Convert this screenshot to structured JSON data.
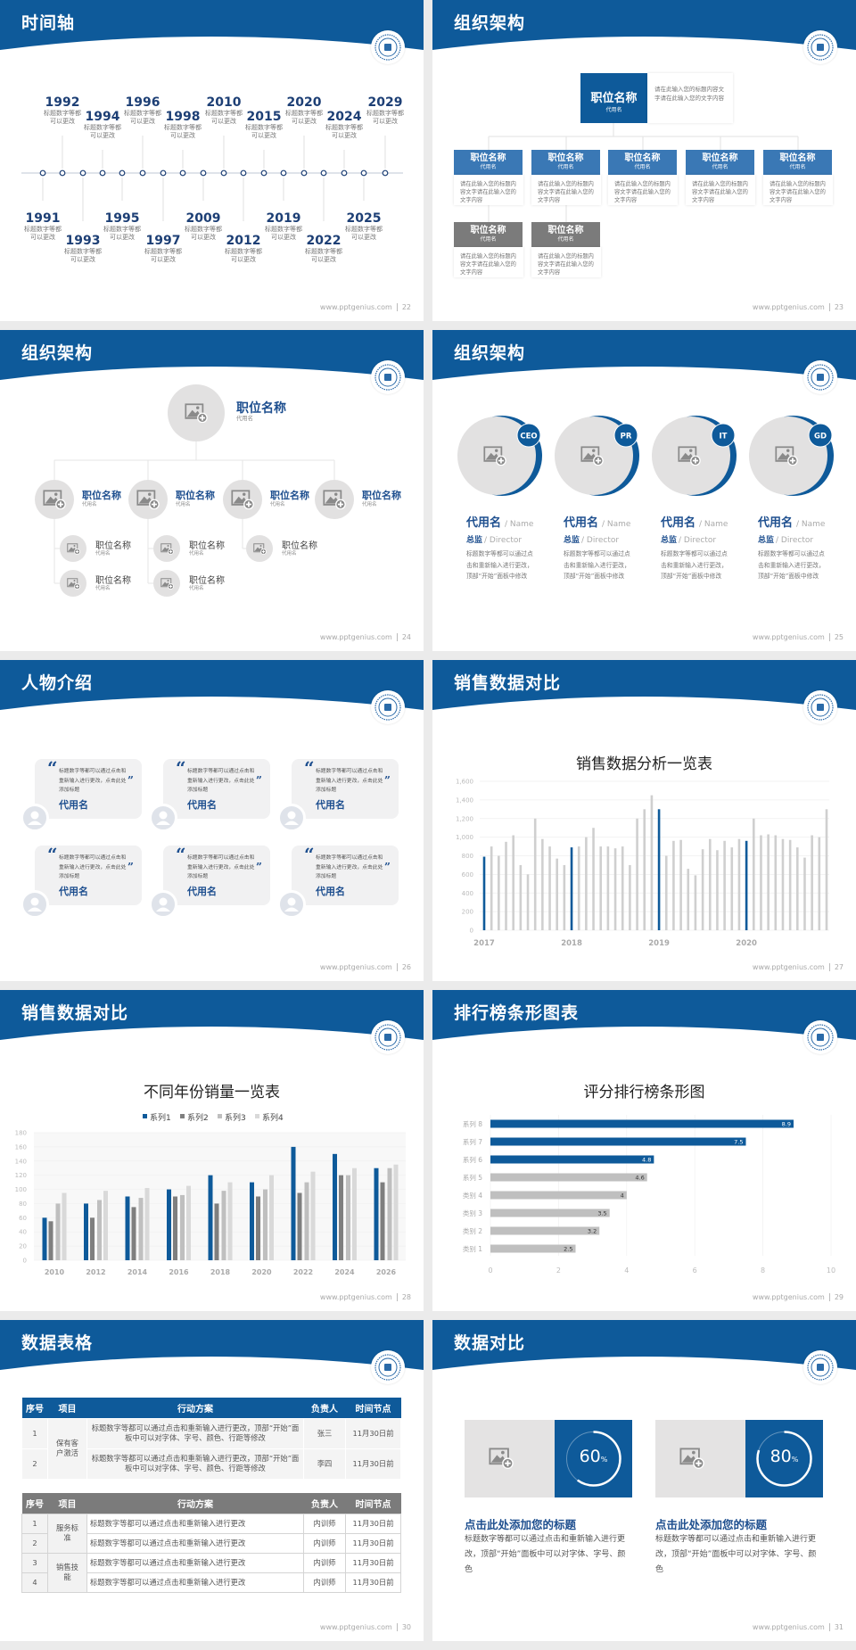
{
  "site": "www.pptgenius.com",
  "colors": {
    "primary": "#0e5a9a",
    "secondary_box": "#3a78b5",
    "gray_box": "#7b7b7b",
    "bar_gray": "#cfcfcf",
    "dark_year": "#1d3f75"
  },
  "slides": {
    "timeline": {
      "title": "时间轴",
      "page": "22",
      "events": [
        {
          "year": "1991",
          "desc": "标题数字等都可以更改"
        },
        {
          "year": "1992",
          "desc": "标题数字等都可以更改"
        },
        {
          "year": "1993",
          "desc": "标题数字等都可以更改"
        },
        {
          "year": "1994",
          "desc": "标题数字等都可以更改"
        },
        {
          "year": "1995",
          "desc": "标题数字等都可以更改"
        },
        {
          "year": "1996",
          "desc": "标题数字等都可以更改"
        },
        {
          "year": "1997",
          "desc": "标题数字等都可以更改"
        },
        {
          "year": "1998",
          "desc": "标题数字等都可以更改"
        },
        {
          "year": "2009",
          "desc": "标题数字等都可以更改"
        },
        {
          "year": "2010",
          "desc": "标题数字等都可以更改"
        },
        {
          "year": "2012",
          "desc": "标题数字等都可以更改"
        },
        {
          "year": "2015",
          "desc": "标题数字等都可以更改"
        },
        {
          "year": "2019",
          "desc": "标题数字等都可以更改"
        },
        {
          "year": "2020",
          "desc": "标题数字等都可以更改"
        },
        {
          "year": "2022",
          "desc": "标题数字等都可以更改"
        },
        {
          "year": "2024",
          "desc": "标题数字等都可以更改"
        },
        {
          "year": "2025",
          "desc": "标题数字等都可以更改"
        },
        {
          "year": "2029",
          "desc": "标题数字等都可以更改"
        }
      ]
    },
    "org1": {
      "title": "组织架构",
      "page": "23",
      "top": {
        "name": "职位名称",
        "alias": "代用名",
        "desc": "请在此输入您的标题内容文字请在此输入您的文字内容"
      },
      "level2": [
        {
          "name": "职位名称",
          "alias": "代用名",
          "desc": "请在此输入您的标题内容文字请在此输入您的文字内容"
        },
        {
          "name": "职位名称",
          "alias": "代用名",
          "desc": "请在此输入您的标题内容文字请在此输入您的文字内容"
        },
        {
          "name": "职位名称",
          "alias": "代用名",
          "desc": "请在此输入您的标题内容文字请在此输入您的文字内容"
        },
        {
          "name": "职位名称",
          "alias": "代用名",
          "desc": "请在此输入您的标题内容文字请在此输入您的文字内容"
        },
        {
          "name": "职位名称",
          "alias": "代用名",
          "desc": "请在此输入您的标题内容文字请在此输入您的文字内容"
        }
      ],
      "level3": [
        {
          "name": "职位名称",
          "alias": "代用名",
          "desc": "请在此输入您的标题内容文字请在此输入您的文字内容"
        },
        {
          "name": "职位名称",
          "alias": "代用名",
          "desc": "请在此输入您的标题内容文字请在此输入您的文字内容"
        }
      ]
    },
    "org2": {
      "title": "组织架构",
      "page": "24",
      "top": {
        "name": "职位名称",
        "alias": "代用名"
      },
      "level2": [
        {
          "name": "职位名称",
          "alias": "代用名"
        },
        {
          "name": "职位名称",
          "alias": "代用名"
        },
        {
          "name": "职位名称",
          "alias": "代用名"
        },
        {
          "name": "职位名称",
          "alias": "代用名"
        }
      ],
      "level3": [
        {
          "name": "职位名称",
          "alias": "代用名"
        },
        {
          "name": "职位名称",
          "alias": "代用名"
        },
        {
          "name": "职位名称",
          "alias": "代用名"
        },
        {
          "name": "职位名称",
          "alias": "代用名"
        },
        {
          "name": "职位名称",
          "alias": "代用名"
        }
      ]
    },
    "team": {
      "title": "组织架构",
      "page": "25",
      "members": [
        {
          "badge": "CEO",
          "name": "代用名",
          "name_en": "/ Name",
          "role": "总监",
          "role_en": "/  Director",
          "desc": "标题数字等都可以通过点击和重新输入进行更改，顶部“开始”面板中修改"
        },
        {
          "badge": "PR",
          "name": "代用名",
          "name_en": "/ Name",
          "role": "总监",
          "role_en": "/  Director",
          "desc": "标题数字等都可以通过点击和重新输入进行更改，顶部“开始”面板中修改"
        },
        {
          "badge": "IT",
          "name": "代用名",
          "name_en": "/ Name",
          "role": "总监",
          "role_en": "/  Director",
          "desc": "标题数字等都可以通过点击和重新输入进行更改，顶部“开始”面板中修改"
        },
        {
          "badge": "GD",
          "name": "代用名",
          "name_en": "/ Name",
          "role": "总监",
          "role_en": "/  Director",
          "desc": "标题数字等都可以通过点击和重新输入进行更改，顶部“开始”面板中修改"
        }
      ]
    },
    "people": {
      "title": "人物介绍",
      "page": "26",
      "cards": [
        {
          "quote": "标题数字等都可以通过点击和重新输入进行更改，点击此处添加标题",
          "name": "代用名"
        },
        {
          "quote": "标题数字等都可以通过点击和重新输入进行更改，点击此处添加标题",
          "name": "代用名"
        },
        {
          "quote": "标题数字等都可以通过点击和重新输入进行更改，点击此处添加标题",
          "name": "代用名"
        },
        {
          "quote": "标题数字等都可以通过点击和重新输入进行更改，点击此处添加标题",
          "name": "代用名"
        },
        {
          "quote": "标题数字等都可以通过点击和重新输入进行更改，点击此处添加标题",
          "name": "代用名"
        },
        {
          "quote": "标题数字等都可以通过点击和重新输入进行更改，点击此处添加标题",
          "name": "代用名"
        }
      ]
    },
    "sales_bar": {
      "title": "销售数据对比",
      "page": "27"
    },
    "sales_group": {
      "title": "销售数据对比",
      "page": "28"
    },
    "ranking": {
      "title": "排行榜条形图表",
      "page": "29"
    },
    "table": {
      "title": "数据表格",
      "page": "30",
      "table1": {
        "headers": [
          "序号",
          "项目",
          "行动方案",
          "负责人",
          "时间节点"
        ],
        "groups": [
          {
            "project": "保有客户激活",
            "rows": [
              {
                "no": "1",
                "action": "标题数字等都可以通过点击和重新输入进行更改，顶部“开始”面板中可以对字体、字号、颜色、行距等修改",
                "owner": "张三",
                "date": "11月30日前"
              },
              {
                "no": "2",
                "action": "标题数字等都可以通过点击和重新输入进行更改，顶部“开始”面板中可以对字体、字号、颜色、行距等修改",
                "owner": "李四",
                "date": "11月30日前"
              }
            ]
          }
        ]
      },
      "table2": {
        "headers": [
          "序号",
          "项目",
          "行动方案",
          "负责人",
          "时间节点"
        ],
        "groups": [
          {
            "project": "服务标准",
            "rows": [
              {
                "no": "1",
                "action": "标题数字等都可以通过点击和重新输入进行更改",
                "owner": "内训师",
                "date": "11月30日前"
              },
              {
                "no": "2",
                "action": "标题数字等都可以通过点击和重新输入进行更改",
                "owner": "内训师",
                "date": "11月30日前"
              }
            ]
          },
          {
            "project": "销售技能",
            "rows": [
              {
                "no": "3",
                "action": "标题数字等都可以通过点击和重新输入进行更改",
                "owner": "内训师",
                "date": "11月30日前"
              },
              {
                "no": "4",
                "action": "标题数字等都可以通过点击和重新输入进行更改",
                "owner": "内训师",
                "date": "11月30日前"
              }
            ]
          }
        ]
      }
    },
    "compare": {
      "title": "数据对比",
      "page": "31",
      "cards": [
        {
          "percent": 60,
          "unit": "%",
          "heading": "点击此处添加您的标题",
          "text": "标题数字等都可以通过点击和重新输入进行更改，顶部“开始”面板中可以对字体、字号、颜色"
        },
        {
          "percent": 80,
          "unit": "%",
          "heading": "点击此处添加您的标题",
          "text": "标题数字等都可以通过点击和重新输入进行更改，顶部“开始”面板中可以对字体、字号、颜色"
        }
      ]
    }
  },
  "chart_data": [
    {
      "type": "bar",
      "title": "销售数据分析一览表",
      "x_labels": [
        "2017",
        "2018",
        "2019",
        "2020"
      ],
      "periods_per_label": 12,
      "values": [
        790,
        900,
        800,
        950,
        1020,
        700,
        600,
        1200,
        980,
        900,
        770,
        700,
        890,
        900,
        1000,
        1100,
        900,
        900,
        880,
        900,
        700,
        1200,
        1300,
        1450,
        1300,
        800,
        960,
        970,
        660,
        590,
        870,
        980,
        860,
        960,
        890,
        980,
        960,
        1200,
        1020,
        1030,
        1020,
        980,
        970,
        890,
        780,
        1020,
        1000,
        1300
      ],
      "highlight": "first bar of each year in primary blue, others gray",
      "ylim": [
        0,
        1600
      ],
      "yticks": [
        "0",
        "200",
        "400",
        "600",
        "800",
        "1,000",
        "1,200",
        "1,400",
        "1,600"
      ],
      "grid": true
    },
    {
      "type": "bar",
      "title": "不同年份销量一览表",
      "categories": [
        "2010",
        "2012",
        "2014",
        "2016",
        "2018",
        "2020",
        "2022",
        "2024",
        "2026"
      ],
      "series": [
        {
          "name": "系列1",
          "color": "#0e5a9a",
          "values": [
            60,
            80,
            90,
            100,
            120,
            110,
            160,
            150,
            130
          ]
        },
        {
          "name": "系列2",
          "color": "#7f7f7f",
          "values": [
            55,
            60,
            75,
            90,
            80,
            90,
            95,
            120,
            110
          ]
        },
        {
          "name": "系列3",
          "color": "#bfbfbf",
          "values": [
            80,
            85,
            88,
            92,
            98,
            100,
            110,
            120,
            130
          ]
        },
        {
          "name": "系列4",
          "color": "#d9d9d9",
          "values": [
            95,
            98,
            102,
            105,
            110,
            120,
            125,
            130,
            135
          ]
        }
      ],
      "ylim": [
        0,
        180
      ],
      "yticks": [
        "0",
        "20",
        "40",
        "60",
        "80",
        "100",
        "120",
        "140",
        "160",
        "180"
      ],
      "legend": "top",
      "grid": true
    },
    {
      "type": "bar",
      "orientation": "horizontal",
      "title": "评分排行榜条形图",
      "categories": [
        "系列 8",
        "系列 7",
        "系列 6",
        "系列 5",
        "类别 4",
        "类别 3",
        "类别 2",
        "类别 1"
      ],
      "values": [
        8.9,
        7.5,
        4.8,
        4.6,
        4,
        3.5,
        3.2,
        2.5
      ],
      "value_labels": [
        "8.9",
        "7.5",
        "4.8",
        "4.6",
        "4",
        "3.5",
        "3.2",
        "2.5"
      ],
      "bar_colors": [
        "#0e5a9a",
        "#0e5a9a",
        "#0e5a9a",
        "#bfbfbf",
        "#bfbfbf",
        "#bfbfbf",
        "#bfbfbf",
        "#bfbfbf"
      ],
      "xlim": [
        0,
        10
      ],
      "xticks": [
        "0",
        "2",
        "4",
        "6",
        "8",
        "10"
      ],
      "grid": true
    }
  ]
}
